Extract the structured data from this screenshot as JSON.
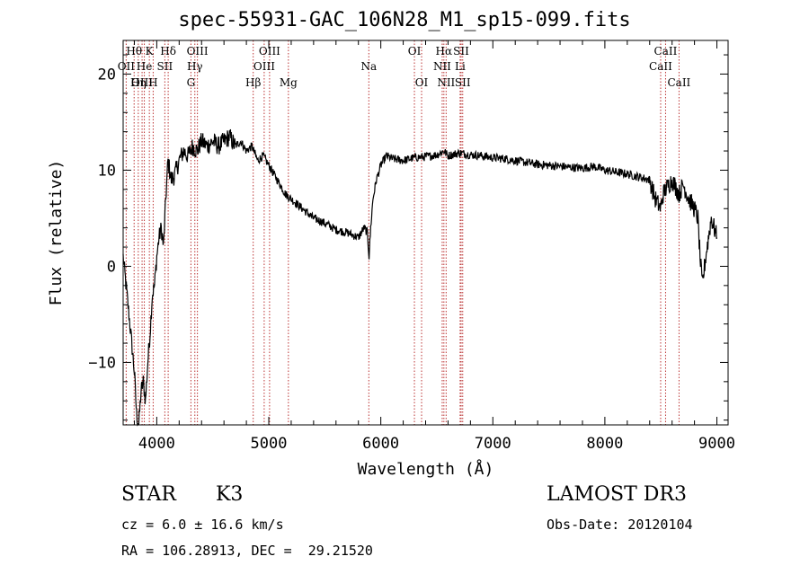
{
  "chart_data": {
    "type": "line",
    "title": "spec-55931-GAC_106N28_M1_sp15-099.fits",
    "xlabel": "Wavelength (Å)",
    "ylabel": "Flux (relative)",
    "xlim": [
      3700,
      9100
    ],
    "ylim": [
      -16.5,
      23.5
    ],
    "x_ticks": [
      4000,
      5000,
      6000,
      7000,
      8000,
      9000
    ],
    "x_tick_labels": [
      "4000",
      "5000",
      "6000",
      "7000",
      "8000",
      "9000"
    ],
    "y_ticks": [
      -10,
      0,
      10,
      20
    ],
    "y_tick_labels": [
      "−10",
      "0",
      "10",
      "20"
    ],
    "series": [
      {
        "name": "spectrum",
        "x": [
          3700,
          3760,
          3800,
          3820,
          3840,
          3860,
          3880,
          3900,
          3920,
          3940,
          3960,
          3980,
          4000,
          4020,
          4040,
          4060,
          4080,
          4100,
          4130,
          4160,
          4200,
          4240,
          4280,
          4320,
          4360,
          4400,
          4450,
          4500,
          4550,
          4600,
          4650,
          4700,
          4750,
          4800,
          4850,
          4900,
          4950,
          5000,
          5050,
          5100,
          5150,
          5200,
          5250,
          5300,
          5400,
          5500,
          5600,
          5700,
          5800,
          5850,
          5880,
          5895,
          5910,
          5930,
          5960,
          6000,
          6050,
          6100,
          6200,
          6300,
          6400,
          6500,
          6563,
          6600,
          6700,
          6800,
          6900,
          7000,
          7100,
          7200,
          7300,
          7400,
          7500,
          7600,
          7700,
          7800,
          7900,
          8000,
          8100,
          8200,
          8300,
          8400,
          8450,
          8498,
          8520,
          8542,
          8600,
          8662,
          8700,
          8750,
          8800,
          8830,
          8850,
          8870,
          8900,
          8950,
          9000
        ],
        "values": [
          1,
          -6,
          -11,
          -15.5,
          -16.5,
          -13,
          -12,
          -14,
          -10,
          -7,
          -3,
          -2,
          1,
          3,
          4,
          2,
          7,
          11,
          9,
          9.5,
          11,
          12,
          11.5,
          12.5,
          12,
          13,
          12.5,
          13,
          12.5,
          13,
          13.5,
          12.5,
          13,
          12,
          12.5,
          11,
          11.5,
          10.5,
          9.5,
          8.5,
          7.5,
          7,
          6.5,
          6,
          5,
          4.5,
          3.8,
          3.5,
          3,
          4,
          3.5,
          1,
          4,
          7,
          9,
          10.5,
          11.5,
          11.2,
          11,
          11.3,
          11.4,
          11.6,
          12,
          11.5,
          11.8,
          11.6,
          11.5,
          11.3,
          11.2,
          11,
          10.8,
          10.6,
          10.5,
          10.4,
          10.3,
          10.2,
          10.4,
          10,
          9.8,
          9.6,
          9.3,
          9,
          7,
          6,
          7.5,
          8,
          9,
          7.5,
          8.5,
          7,
          6,
          5,
          1,
          -2,
          1,
          5,
          3
        ]
      }
    ],
    "lines": [
      {
        "name": "Hθ",
        "x": 3798,
        "row": 1
      },
      {
        "name": "OII",
        "x": 3727,
        "row": 2
      },
      {
        "name": "OIII",
        "x": 3869,
        "row": 3
      },
      {
        "name": "K",
        "x": 3934,
        "row": 1
      },
      {
        "name": "He",
        "x": 3889,
        "row": 2
      },
      {
        "name": "Hη",
        "x": 3835,
        "row": 3
      },
      {
        "name": "H",
        "x": 3968,
        "row": 3
      },
      {
        "name": "SII",
        "x": 4072,
        "row": 2
      },
      {
        "name": "Hδ",
        "x": 4102,
        "row": 1
      },
      {
        "name": "OIII",
        "x": 4363,
        "row": 1
      },
      {
        "name": "Hγ",
        "x": 4340,
        "row": 2
      },
      {
        "name": "G",
        "x": 4305,
        "row": 3
      },
      {
        "name": "Hβ",
        "x": 4861,
        "row": 3
      },
      {
        "name": "OIII",
        "x": 5007,
        "row": 1
      },
      {
        "name": "OIII",
        "x": 4959,
        "row": 2
      },
      {
        "name": "Mg",
        "x": 5175,
        "row": 3
      },
      {
        "name": "Na",
        "x": 5893,
        "row": 2
      },
      {
        "name": "OI",
        "x": 6300,
        "row": 1
      },
      {
        "name": "OI",
        "x": 6364,
        "row": 3
      },
      {
        "name": "Hα",
        "x": 6563,
        "row": 1
      },
      {
        "name": "NII",
        "x": 6548,
        "row": 2
      },
      {
        "name": "NII",
        "x": 6583,
        "row": 3
      },
      {
        "name": "SII",
        "x": 6717,
        "row": 1
      },
      {
        "name": "Li",
        "x": 6708,
        "row": 2
      },
      {
        "name": "SII",
        "x": 6731,
        "row": 3
      },
      {
        "name": "CaII",
        "x": 8542,
        "row": 1
      },
      {
        "name": "CaII",
        "x": 8498,
        "row": 2
      },
      {
        "name": "CaII",
        "x": 8662,
        "row": 3
      }
    ]
  },
  "info": {
    "object_class": "STAR",
    "subclass": "K3",
    "survey": "LAMOST DR3",
    "redshift": "cz = 6.0 ± 16.6 km/s",
    "obs_date": "Obs-Date: 20120104",
    "coords": "RA = 106.28913, DEC =  29.21520"
  }
}
